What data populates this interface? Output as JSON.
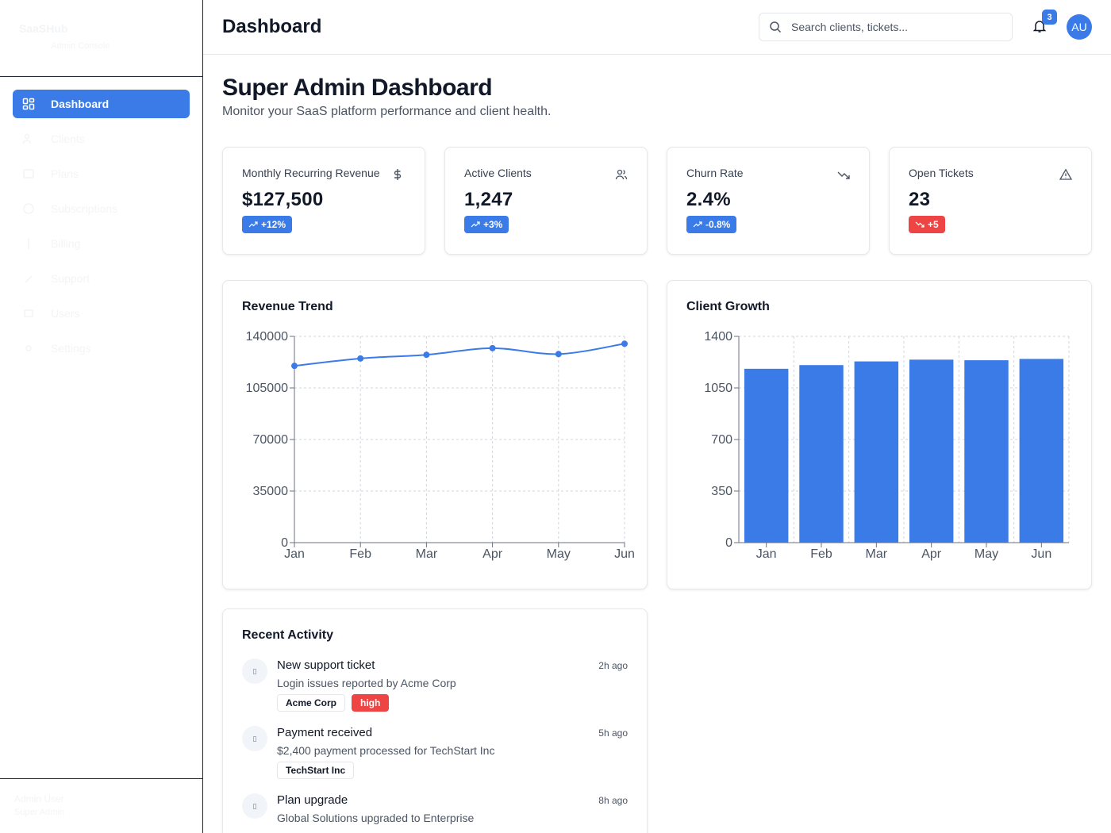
{
  "sidebar": {
    "brand_title": "SaaSHub",
    "brand_sub": "Admin Console",
    "items": [
      {
        "label": "Dashboard",
        "icon": "grid-icon",
        "active": true
      },
      {
        "label": "Clients",
        "icon": "users-icon"
      },
      {
        "label": "Plans",
        "icon": "box-icon"
      },
      {
        "label": "Subscriptions",
        "icon": "card-icon"
      },
      {
        "label": "Billing",
        "icon": "dollar-icon"
      },
      {
        "label": "Support",
        "icon": "help-icon"
      },
      {
        "label": "Users",
        "icon": "user-icon"
      },
      {
        "label": "Settings",
        "icon": "gear-icon"
      }
    ],
    "footer_name": "Admin User",
    "footer_role": "Super Admin"
  },
  "header": {
    "title": "Dashboard",
    "search_placeholder": "Search clients, tickets...",
    "notification_count": "3",
    "avatar_initials": "AU"
  },
  "page": {
    "title": "Super Admin Dashboard",
    "subtitle": "Monitor your SaaS platform performance and client health."
  },
  "kpis": [
    {
      "label": "Monthly Recurring Revenue",
      "value": "$127,500",
      "change": "+12%",
      "trend": "up",
      "icon": "dollar-icon",
      "color": "#3b7be8"
    },
    {
      "label": "Active Clients",
      "value": "1,247",
      "change": "+3%",
      "trend": "up",
      "icon": "users-icon",
      "color": "#3b7be8"
    },
    {
      "label": "Churn Rate",
      "value": "2.4%",
      "change": "-0.8%",
      "trend": "up",
      "icon": "trending-down-icon",
      "color": "#3b7be8"
    },
    {
      "label": "Open Tickets",
      "value": "23",
      "change": "+5",
      "trend": "down",
      "icon": "alert-triangle-icon",
      "color": "#ef4444"
    }
  ],
  "chart_data": [
    {
      "type": "line",
      "title": "Revenue Trend",
      "categories": [
        "Jan",
        "Feb",
        "Mar",
        "Apr",
        "May",
        "Jun"
      ],
      "values": [
        120000,
        125000,
        127500,
        132000,
        128000,
        135000
      ],
      "ylim": [
        0,
        140000
      ],
      "yticks": [
        0,
        35000,
        70000,
        105000,
        140000
      ],
      "grid": true,
      "color": "#3b7be8"
    },
    {
      "type": "bar",
      "title": "Client Growth",
      "categories": [
        "Jan",
        "Feb",
        "Mar",
        "Apr",
        "May",
        "Jun"
      ],
      "values": [
        1180,
        1205,
        1230,
        1242,
        1238,
        1247
      ],
      "ylim": [
        0,
        1400
      ],
      "yticks": [
        0,
        350,
        700,
        1050,
        1400
      ],
      "grid": true,
      "color": "#3b7be8"
    }
  ],
  "activity": {
    "title": "Recent Activity",
    "items": [
      {
        "title": "New support ticket",
        "desc": "Login issues reported by Acme Corp",
        "time": "2h ago",
        "tags": [
          "Acme Corp",
          "high"
        ]
      },
      {
        "title": "Payment received",
        "desc": "$2,400 payment processed for TechStart Inc",
        "time": "5h ago",
        "tags": [
          "TechStart Inc"
        ]
      },
      {
        "title": "Plan upgrade",
        "desc": "Global Solutions upgraded to Enterprise",
        "time": "8h ago",
        "tags": []
      }
    ]
  }
}
